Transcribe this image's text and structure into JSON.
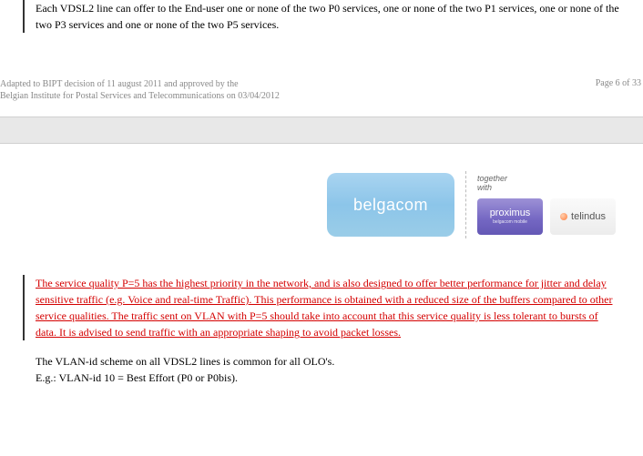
{
  "top_paragraph": "Each VDSL2 line can offer to the End-user one or none of the two P0 services, one or none of the two P1 services, one or none of the two P3 services and one or none of the two P5 services.",
  "footer": {
    "line1": "Adapted to BIPT decision of 11 august 2011 and approved by the",
    "line2": "Belgian Institute for Postal Services and Telecommunications on 03/04/2012",
    "page": "Page 6 of 33"
  },
  "logos": {
    "belgacom": "belgacom",
    "together": "together\nwith",
    "proximus": "proximus",
    "proximus_sub": "belgacom mobile",
    "telindus": "telindus"
  },
  "red_paragraph": "The service quality P=5 has the highest priority in the network, and is also designed to offer better performance for jitter and delay sensitive traffic (e.g. Voice and real-time Traffic). This performance is obtained with a reduced size of the buffers compared to other service qualities. The traffic sent on VLAN with P=5 should take into account that this service quality is less tolerant to bursts of data. It is advised to send traffic with an appropriate shaping to avoid packet losses.",
  "vlan_line1": "The VLAN-id scheme on all VDSL2 lines is common for all OLO's.",
  "vlan_line2": "E.g.: VLAN-id 10 = Best Effort (P0 or P0bis)."
}
